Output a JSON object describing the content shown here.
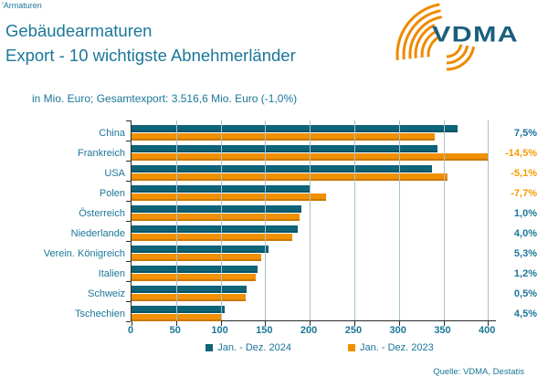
{
  "header": {
    "corner_tag": "'Armaturen"
  },
  "title": {
    "line1": "Gebäudearmaturen",
    "line2": "Export - 10 wichtigste Abnehmerländer"
  },
  "subtitle": "in Mio. Euro; Gesamtexport: 3.516,6 Mio. Euro (-1,0%)",
  "logo": {
    "text": "VDMA"
  },
  "footer": {
    "source": "Quelle: VDMA, Destatis"
  },
  "colors": {
    "bar_teal": "#0E6478",
    "bar_orange": "#F19000",
    "text": "#1B7699",
    "pct_negative": "#F49B00",
    "grid": "#A9C2CE",
    "axis": "#2B2B2B",
    "logo_text": "#1A5F7E",
    "logo_arc": "#EF8A00"
  },
  "chart_data": {
    "type": "bar",
    "orientation": "horizontal",
    "title": "Gebäudearmaturen Export - 10 wichtigste Abnehmerländer",
    "subtitle": "in Mio. Euro; Gesamtexport: 3.516,6 Mio. Euro (-1,0%)",
    "unit": "Mio. Euro",
    "categories": [
      "China",
      "Frankreich",
      "USA",
      "Polen",
      "Österreich",
      "Niederlande",
      "Verein. Königreich",
      "Italien",
      "Schweiz",
      "Tschechien"
    ],
    "series": [
      {
        "name": "Jan. - Dez. 2024",
        "color_key": "bar_teal",
        "values": [
          366,
          343,
          337,
          201,
          191,
          187,
          154,
          141,
          129,
          104
        ]
      },
      {
        "name": "Jan. - Dez. 2023",
        "color_key": "bar_orange",
        "values": [
          340,
          401,
          355,
          218,
          189,
          180,
          146,
          139,
          128,
          100
        ]
      }
    ],
    "change_labels": [
      "7,5%",
      "-14,5%",
      "-5,1%",
      "-7,7%",
      "1,0%",
      "4,0%",
      "5,3%",
      "1,2%",
      "0,5%",
      "4,5%"
    ],
    "xticks": [
      0,
      50,
      100,
      150,
      200,
      250,
      300,
      350,
      400
    ],
    "xlim": [
      0,
      410
    ],
    "grid": true,
    "legend_position": "bottom"
  }
}
